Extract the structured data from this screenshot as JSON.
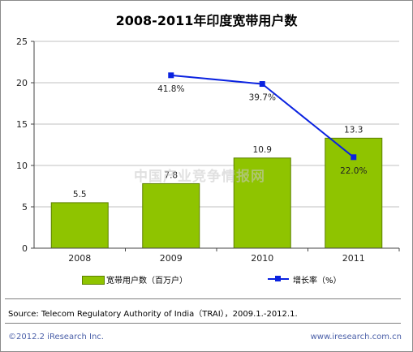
{
  "title": "2008-2011年印度宽带用户数",
  "chart_data": {
    "type": "bar",
    "categories": [
      "2008",
      "2009",
      "2010",
      "2011"
    ],
    "series": [
      {
        "name": "宽带用户数（百万户）",
        "type": "bar",
        "axis": "left",
        "values": [
          5.5,
          7.8,
          10.9,
          13.3
        ],
        "labels": [
          "5.5",
          "7.8",
          "10.9",
          "13.3"
        ]
      },
      {
        "name": "增长率（%）",
        "type": "line",
        "axis": "right",
        "values": [
          null,
          41.8,
          39.7,
          22.0
        ],
        "labels": [
          "",
          "41.8%",
          "39.7%",
          "22.0%"
        ]
      }
    ],
    "yticks": [
      "0",
      "5",
      "10",
      "15",
      "20",
      "25"
    ],
    "ylim": [
      0,
      25
    ],
    "legend": "bottom",
    "colors": {
      "bar": "#8fc400",
      "bar_border": "#5c8000",
      "line": "#0a22e0",
      "grid": "#c0c0c0"
    }
  },
  "watermark": "中国产业竞争情报网",
  "source": "Source: Telecom Regulatory Authority of India（TRAI），2009.1.-2012.1.",
  "footer": {
    "copyright": "©2012.2 iResearch Inc.",
    "website": "www.iresearch.com.cn"
  }
}
